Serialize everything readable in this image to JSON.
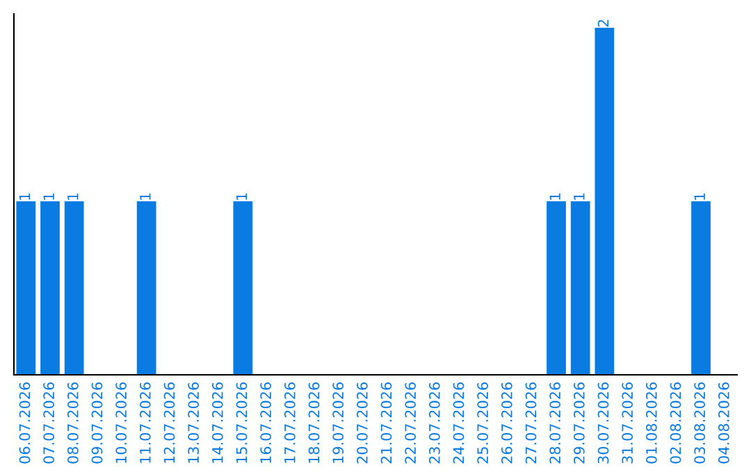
{
  "chart_data": {
    "type": "bar",
    "categories": [
      "06.07.2026",
      "07.07.2026",
      "08.07.2026",
      "09.07.2026",
      "10.07.2026",
      "11.07.2026",
      "12.07.2026",
      "13.07.2026",
      "14.07.2026",
      "15.07.2026",
      "16.07.2026",
      "17.07.2026",
      "18.07.2026",
      "19.07.2026",
      "20.07.2026",
      "21.07.2026",
      "22.07.2026",
      "23.07.2026",
      "24.07.2026",
      "25.07.2026",
      "26.07.2026",
      "27.07.2026",
      "28.07.2026",
      "29.07.2026",
      "30.07.2026",
      "31.07.2026",
      "01.08.2026",
      "02.08.2026",
      "03.08.2026",
      "04.08.2026"
    ],
    "values": [
      1,
      1,
      1,
      0,
      0,
      1,
      0,
      0,
      0,
      1,
      0,
      0,
      0,
      0,
      0,
      0,
      0,
      0,
      0,
      0,
      0,
      0,
      1,
      1,
      2,
      0,
      0,
      0,
      1,
      0
    ],
    "value_labels": [
      "1",
      "1",
      "1",
      null,
      null,
      "1",
      null,
      null,
      null,
      "1",
      null,
      null,
      null,
      null,
      null,
      null,
      null,
      null,
      null,
      null,
      null,
      null,
      "1",
      "1",
      "2",
      null,
      null,
      null,
      "1",
      null
    ],
    "color": "#0a7be0",
    "tick_labels": "x",
    "grid": false,
    "legend": false
  }
}
